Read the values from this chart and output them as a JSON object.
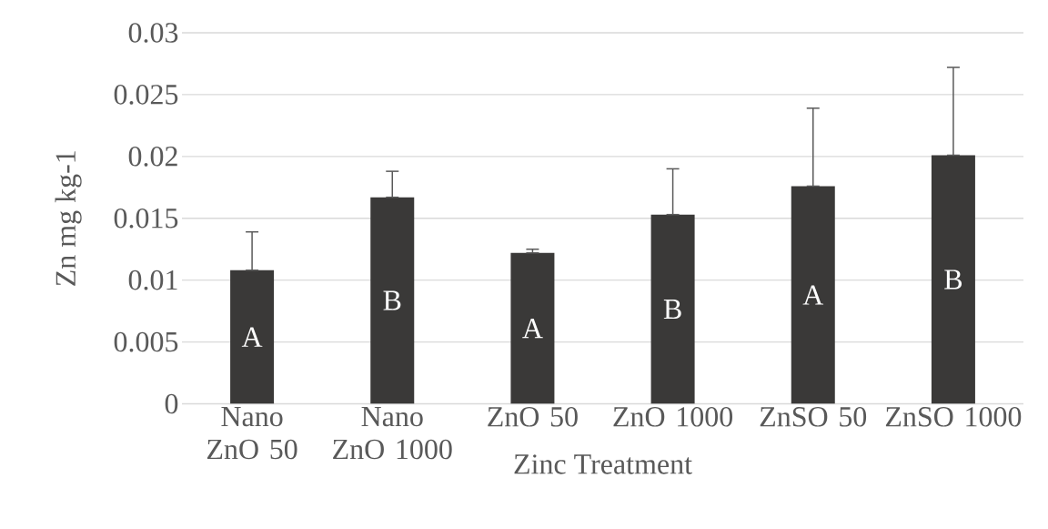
{
  "chart_data": {
    "type": "bar",
    "xlabel": "Zinc Treatment",
    "ylabel": "Zn mg kg-1",
    "categories": [
      "Nano ZnO 50",
      "Nano ZnO 1000",
      "ZnO 50",
      "ZnO 1000",
      "ZnSO 50",
      "ZnSO 1000"
    ],
    "values": [
      0.0108,
      0.0167,
      0.0122,
      0.0153,
      0.0176,
      0.0201
    ],
    "errors": [
      [
        0.0108,
        0.0139
      ],
      [
        0.0167,
        0.0188
      ],
      [
        0.0122,
        0.0125
      ],
      [
        0.0153,
        0.019
      ],
      [
        0.0176,
        0.0239
      ],
      [
        0.0201,
        0.0272
      ]
    ],
    "color": "#3a3938",
    "ylim": [
      0,
      0.03
    ],
    "yticks": [
      0,
      0.005,
      0.01,
      0.015,
      0.02,
      0.025,
      0.03
    ],
    "grid": "y",
    "annotations": [
      "A",
      "B",
      "A",
      "B",
      "A",
      "B"
    ]
  }
}
